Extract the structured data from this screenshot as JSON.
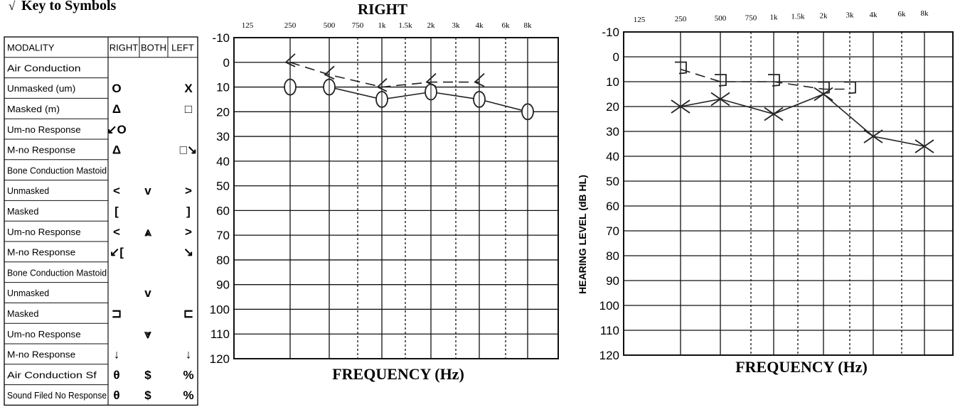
{
  "key": {
    "title": "Key to Symbols",
    "header": [
      "MODALITY",
      "RIGHT",
      "BOTH",
      "LEFT"
    ],
    "rows": [
      {
        "label": "Air Conduction",
        "right": "",
        "both": "",
        "left": ""
      },
      {
        "label": "Unmasked (um)",
        "right": "O",
        "both": "",
        "left": "X"
      },
      {
        "label": "Masked (m)",
        "right": "Δ",
        "both": "",
        "left": "□"
      },
      {
        "label": "Um-no Response",
        "right": "↙O",
        "both": "",
        "left": ""
      },
      {
        "label": "M-no Response",
        "right": "Δ",
        "both": "",
        "left": "□↘"
      },
      {
        "label": "Bone Conduction Mastoid",
        "right": "",
        "both": "",
        "left": ""
      },
      {
        "label": "Unmasked",
        "right": "<",
        "both": "v",
        "left": ">"
      },
      {
        "label": "Masked",
        "right": "[",
        "both": "",
        "left": "]"
      },
      {
        "label": "Um-no Response",
        "right": "<",
        "both": "⩓",
        "left": ">"
      },
      {
        "label": "M-no Response",
        "right": "↙[",
        "both": "",
        "left": "↘"
      },
      {
        "label": "Bone Conduction Mastoid",
        "right": "",
        "both": "",
        "left": ""
      },
      {
        "label": "Unmasked",
        "right": "",
        "both": "v",
        "left": ""
      },
      {
        "label": "Masked",
        "right": "⊐",
        "both": "",
        "left": "⊏"
      },
      {
        "label": "Um-no Response",
        "right": "",
        "both": "⩔",
        "left": ""
      },
      {
        "label": "M-no Response",
        "right": "↓",
        "both": "",
        "left": "↓"
      },
      {
        "label": "Air Conduction Sf",
        "right": "θ",
        "both": "$",
        "left": "%"
      },
      {
        "label": "Sound Filed No Response",
        "right": "θ",
        "both": "$",
        "left": "%"
      }
    ]
  },
  "chart_data": [
    {
      "type": "line",
      "title": "RIGHT",
      "xlabel": "FREQUENCY (Hz)",
      "ylabel": "",
      "x_ticks": [
        "125",
        "250",
        "500",
        "750",
        "1k",
        "1.5k",
        "2k",
        "3k",
        "4k",
        "6k",
        "8k"
      ],
      "y_ticks": [
        "-10",
        "0",
        "10",
        "20",
        "30",
        "40",
        "50",
        "60",
        "70",
        "80",
        "90",
        "100",
        "110",
        "120"
      ],
      "ylim": [
        -10,
        120
      ],
      "y_inverted": true,
      "series": [
        {
          "symbol": "O",
          "color": "#222222",
          "line": "solid",
          "x": [
            "250",
            "500",
            "1k",
            "2k",
            "4k",
            "8k"
          ],
          "y": [
            10,
            10,
            15,
            12,
            15,
            20
          ]
        },
        {
          "symbol": "<",
          "color": "#222222",
          "line": "dashed",
          "x": [
            "250",
            "500",
            "1k",
            "2k",
            "4k"
          ],
          "y": [
            0,
            5,
            10,
            8,
            8
          ]
        }
      ]
    },
    {
      "type": "line",
      "title": "",
      "xlabel": "FREQUENCY (Hz)",
      "ylabel": "HEARING LEVEL (dB HL)",
      "x_ticks": [
        "125",
        "250",
        "500",
        "750",
        "1k",
        "1.5k",
        "2k",
        "3k",
        "4k",
        "6k",
        "8k"
      ],
      "y_ticks": [
        "-10",
        "0",
        "10",
        "20",
        "30",
        "40",
        "50",
        "60",
        "70",
        "80",
        "90",
        "100",
        "110",
        "120"
      ],
      "ylim": [
        -10,
        120
      ],
      "y_inverted": true,
      "series": [
        {
          "symbol": "X",
          "color": "#222222",
          "line": "solid",
          "x": [
            "250",
            "500",
            "1k",
            "2k",
            "4k",
            "8k"
          ],
          "y": [
            20,
            17,
            23,
            15,
            32,
            36
          ]
        },
        {
          "symbol": ">",
          "color": "#222222",
          "line": "dashed",
          "x": [
            "250",
            "500",
            "1k",
            "2k",
            "3k"
          ],
          "y": [
            5,
            10,
            10,
            13,
            13
          ]
        }
      ]
    }
  ]
}
